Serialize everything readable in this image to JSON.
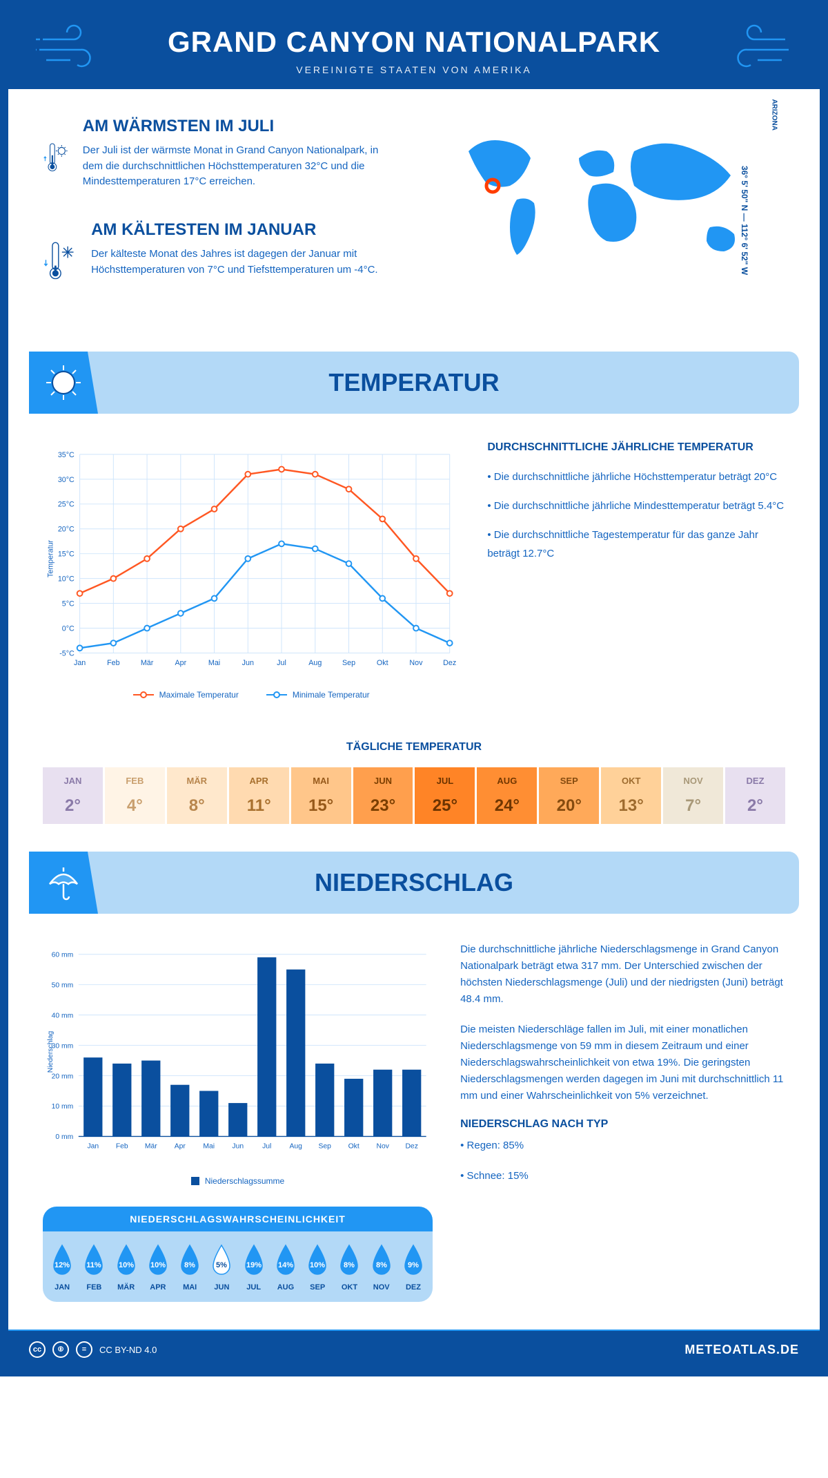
{
  "header": {
    "title": "GRAND CANYON NATIONALPARK",
    "subtitle": "VEREINIGTE STAATEN VON AMERIKA"
  },
  "intro": {
    "warmest": {
      "title": "AM WÄRMSTEN IM JULI",
      "text": "Der Juli ist der wärmste Monat in Grand Canyon Nationalpark, in dem die durchschnittlichen Höchsttemperaturen 32°C und die Mindesttemperaturen 17°C erreichen."
    },
    "coldest": {
      "title": "AM KÄLTESTEN IM JANUAR",
      "text": "Der kälteste Monat des Jahres ist dagegen der Januar mit Höchsttemperaturen von 7°C und Tiefsttemperaturen um -4°C."
    },
    "state": "ARIZONA",
    "coords": "36° 5' 50\" N — 112° 6' 52\" W"
  },
  "temperature_section": {
    "title": "TEMPERATUR",
    "chart": {
      "ylabel": "Temperatur",
      "months": [
        "Jan",
        "Feb",
        "Mär",
        "Apr",
        "Mai",
        "Jun",
        "Jul",
        "Aug",
        "Sep",
        "Okt",
        "Nov",
        "Dez"
      ],
      "ylim": [
        -5,
        35
      ],
      "ytick_step": 5,
      "max_series": {
        "label": "Maximale Temperatur",
        "color": "#ff5722",
        "values": [
          7,
          10,
          14,
          20,
          24,
          31,
          32,
          31,
          28,
          22,
          14,
          7
        ]
      },
      "min_series": {
        "label": "Minimale Temperatur",
        "color": "#2196f3",
        "values": [
          -4,
          -3,
          0,
          3,
          6,
          14,
          17,
          16,
          13,
          6,
          0,
          -3
        ]
      },
      "grid_color": "#cfe5fb",
      "bg_light": "#f5faff"
    },
    "info": {
      "title": "DURCHSCHNITTLICHE JÄHRLICHE TEMPERATUR",
      "bullets": [
        "• Die durchschnittliche jährliche Höchsttemperatur beträgt 20°C",
        "• Die durchschnittliche jährliche Mindesttemperatur beträgt 5.4°C",
        "• Die durchschnittliche Tagestemperatur für das ganze Jahr beträgt 12.7°C"
      ]
    },
    "daily": {
      "title": "TÄGLICHE TEMPERATUR",
      "months": [
        "JAN",
        "FEB",
        "MÄR",
        "APR",
        "MAI",
        "JUN",
        "JUL",
        "AUG",
        "SEP",
        "OKT",
        "NOV",
        "DEZ"
      ],
      "values": [
        "2°",
        "4°",
        "8°",
        "11°",
        "15°",
        "23°",
        "25°",
        "24°",
        "20°",
        "13°",
        "7°",
        "2°"
      ],
      "bg_colors": [
        "#e8e0f0",
        "#fff4e6",
        "#ffe8cc",
        "#ffdab0",
        "#ffc68a",
        "#ff9f4d",
        "#ff8426",
        "#ff8e33",
        "#ffa959",
        "#ffd199",
        "#f0e8d8",
        "#e8e0f0"
      ],
      "text_colors": [
        "#8a7aa8",
        "#c99f6e",
        "#b8864d",
        "#a8702e",
        "#96591a",
        "#7a3e00",
        "#6b3300",
        "#703600",
        "#854b0f",
        "#9e6b2e",
        "#a89878",
        "#8a7aa8"
      ]
    }
  },
  "precipitation_section": {
    "title": "NIEDERSCHLAG",
    "chart": {
      "ylabel": "Niederschlag",
      "months": [
        "Jan",
        "Feb",
        "Mär",
        "Apr",
        "Mai",
        "Jun",
        "Jul",
        "Aug",
        "Sep",
        "Okt",
        "Nov",
        "Dez"
      ],
      "ylim": [
        0,
        60
      ],
      "ytick_step": 10,
      "bar_color": "#0a4f9e",
      "values": [
        26,
        24,
        25,
        17,
        15,
        11,
        59,
        55,
        24,
        19,
        22,
        22
      ],
      "legend": "Niederschlagssumme",
      "grid_color": "#cfe5fb"
    },
    "text1": "Die durchschnittliche jährliche Niederschlagsmenge in Grand Canyon Nationalpark beträgt etwa 317 mm. Der Unterschied zwischen der höchsten Niederschlagsmenge (Juli) und der niedrigsten (Juni) beträgt 48.4 mm.",
    "text2": "Die meisten Niederschläge fallen im Juli, mit einer monatlichen Niederschlagsmenge von 59 mm in diesem Zeitraum und einer Niederschlagswahrscheinlichkeit von etwa 19%. Die geringsten Niederschlagsmengen werden dagegen im Juni mit durchschnittlich 11 mm und einer Wahrscheinlichkeit von 5% verzeichnet.",
    "type_title": "NIEDERSCHLAG NACH TYP",
    "type_bullets": [
      "• Regen: 85%",
      "• Schnee: 15%"
    ],
    "probability": {
      "title": "NIEDERSCHLAGSWAHRSCHEINLICHKEIT",
      "months": [
        "JAN",
        "FEB",
        "MÄR",
        "APR",
        "MAI",
        "JUN",
        "JUL",
        "AUG",
        "SEP",
        "OKT",
        "NOV",
        "DEZ"
      ],
      "values": [
        "12%",
        "11%",
        "10%",
        "10%",
        "8%",
        "5%",
        "19%",
        "14%",
        "10%",
        "8%",
        "8%",
        "9%"
      ],
      "min_index": 5
    }
  },
  "footer": {
    "license": "CC BY-ND 4.0",
    "brand": "METEOATLAS.DE"
  },
  "colors": {
    "primary": "#0a4f9e",
    "accent": "#2196f3",
    "light_blue": "#b3d9f7",
    "text_blue": "#1565c0",
    "marker_red": "#ff3d00"
  }
}
